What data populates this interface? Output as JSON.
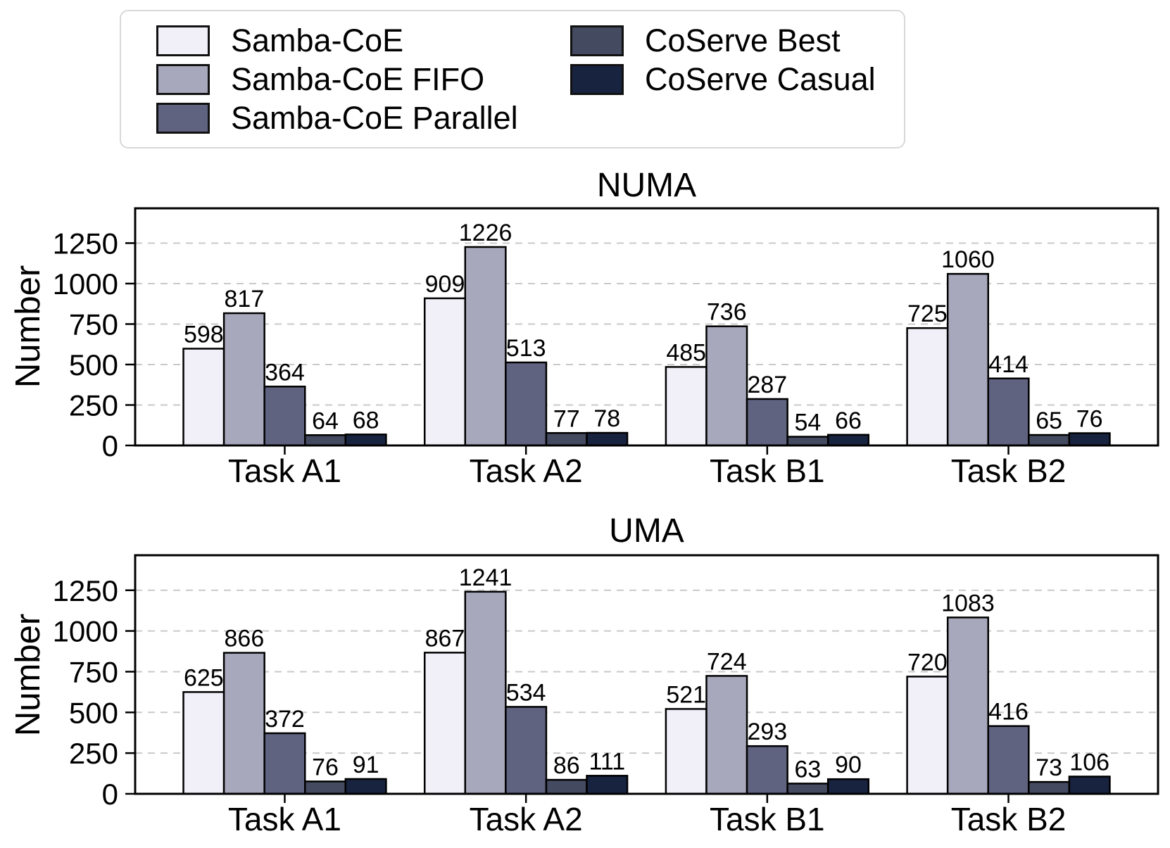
{
  "legend": {
    "border_color": "#d8d8d8",
    "items": [
      {
        "label": "Samba-CoE",
        "color": "#f1f0f8"
      },
      {
        "label": "Samba-CoE FIFO",
        "color": "#a8a8bc"
      },
      {
        "label": "Samba-CoE Parallel",
        "color": "#5f6380"
      },
      {
        "label": "CoServe Best",
        "color": "#444a5f"
      },
      {
        "label": "CoServe Casual",
        "color": "#182340"
      }
    ]
  },
  "chart_data": [
    {
      "type": "bar",
      "title": "NUMA",
      "ylabel": "Number",
      "categories": [
        "Task A1",
        "Task A2",
        "Task B1",
        "Task B2"
      ],
      "yticks": [
        0,
        250,
        500,
        750,
        1000,
        1250
      ],
      "ylim": [
        0,
        1465
      ],
      "grid": "horizontal-dashed",
      "grid_color": "#c9c9c9",
      "bar_edge_color": "#000000",
      "legend_position": "above-figure",
      "series": [
        {
          "name": "Samba-CoE",
          "color": "#f1f0f8",
          "values": [
            598,
            909,
            485,
            725
          ]
        },
        {
          "name": "Samba-CoE FIFO",
          "color": "#a8a8bc",
          "values": [
            817,
            1226,
            736,
            1060
          ]
        },
        {
          "name": "Samba-CoE Parallel",
          "color": "#5f6380",
          "values": [
            364,
            513,
            287,
            414
          ]
        },
        {
          "name": "CoServe Best",
          "color": "#444a5f",
          "values": [
            64,
            77,
            54,
            65
          ]
        },
        {
          "name": "CoServe Casual",
          "color": "#182340",
          "values": [
            68,
            78,
            66,
            76
          ]
        }
      ]
    },
    {
      "type": "bar",
      "title": "UMA",
      "ylabel": "Number",
      "categories": [
        "Task A1",
        "Task A2",
        "Task B1",
        "Task B2"
      ],
      "yticks": [
        0,
        250,
        500,
        750,
        1000,
        1250
      ],
      "ylim": [
        0,
        1465
      ],
      "grid": "horizontal-dashed",
      "grid_color": "#c9c9c9",
      "bar_edge_color": "#000000",
      "legend_position": "above-figure",
      "series": [
        {
          "name": "Samba-CoE",
          "color": "#f1f0f8",
          "values": [
            625,
            867,
            521,
            720
          ]
        },
        {
          "name": "Samba-CoE FIFO",
          "color": "#a8a8bc",
          "values": [
            866,
            1241,
            724,
            1083
          ]
        },
        {
          "name": "Samba-CoE Parallel",
          "color": "#5f6380",
          "values": [
            372,
            534,
            293,
            416
          ]
        },
        {
          "name": "CoServe Best",
          "color": "#444a5f",
          "values": [
            76,
            86,
            63,
            73
          ]
        },
        {
          "name": "CoServe Casual",
          "color": "#182340",
          "values": [
            91,
            111,
            90,
            106
          ]
        }
      ]
    }
  ]
}
